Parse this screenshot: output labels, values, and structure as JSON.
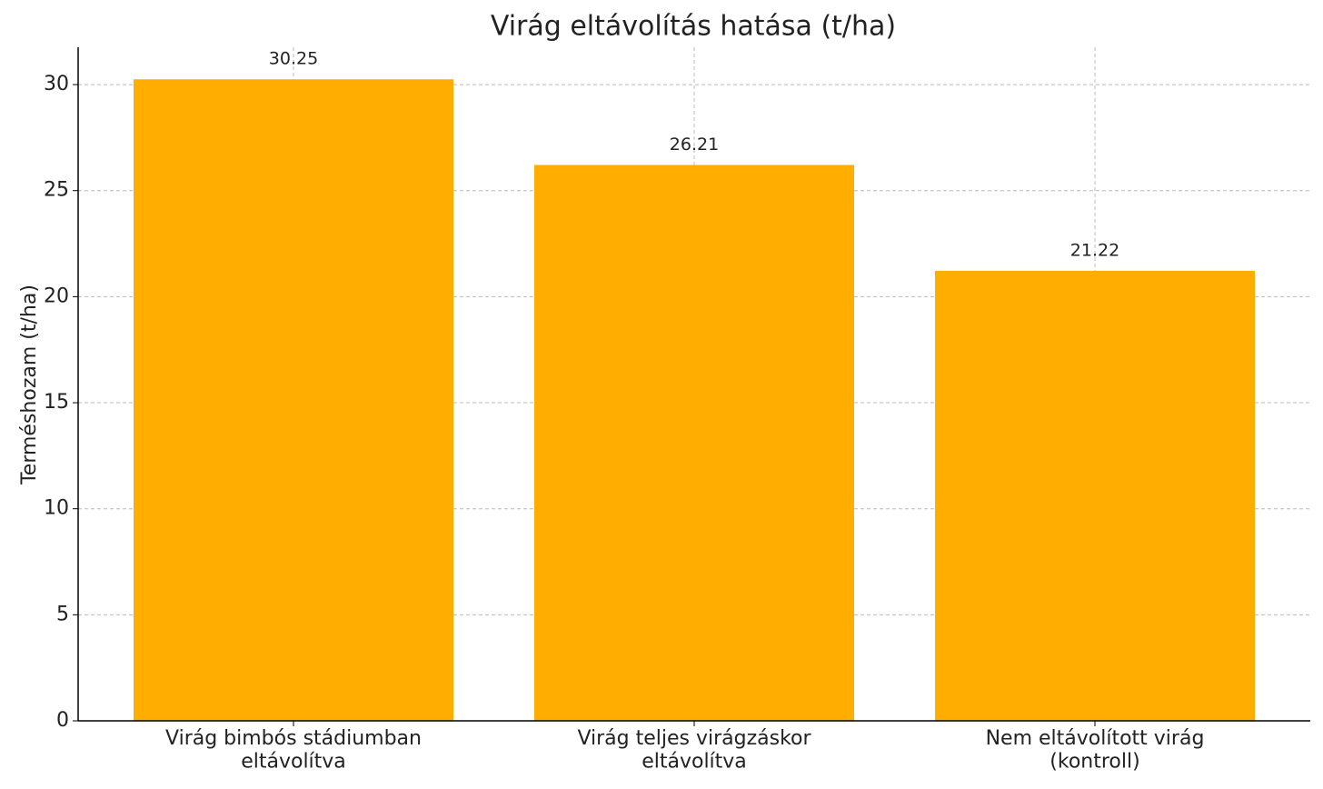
{
  "chart_data": {
    "type": "bar",
    "title": "Virág eltávolítás hatása (t/ha)",
    "y_label": "Terméshozam (t/ha)",
    "categories": [
      "Virág bimbós stádiumban\neltávolítva",
      "Virág teljes virágzáskor\neltávolítva",
      "Nem eltávolított virág\n(kontroll)"
    ],
    "values": [
      30.25,
      26.21,
      21.22
    ],
    "color": "#ffae00",
    "ylim": [
      0,
      31.76
    ],
    "yticks": [
      0,
      5,
      10,
      15,
      20,
      25,
      30
    ],
    "grid": true
  }
}
